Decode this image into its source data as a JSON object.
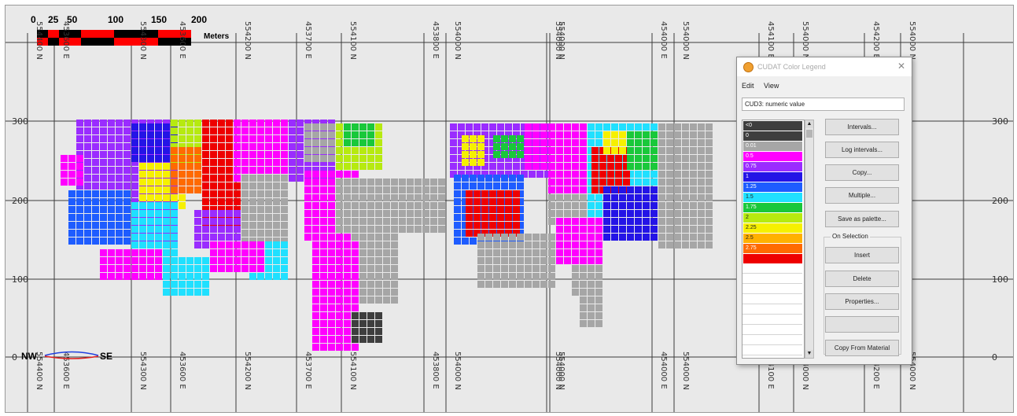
{
  "scale_bar": {
    "ticks": [
      "0",
      "25",
      "50",
      "100",
      "150",
      "200"
    ],
    "unit": "Meters"
  },
  "section_labels": {
    "left": "NW",
    "right": "SE"
  },
  "coord_labels_top": [
    "554400 N",
    "453600 E",
    "554300 N",
    "453600 E",
    "554200 N",
    "453700 E",
    "554100 N",
    "453800 E",
    "554000 N",
    "554000 N",
    "554000 N",
    "454000 E",
    "554000 N",
    "454100 E",
    "554000 N",
    "454200 E",
    "554000 N"
  ],
  "coord_labels_bottom": [
    "554400 N",
    "453600 E",
    "554300 N",
    "453600 E",
    "554200 N",
    "453700 E",
    "554100 N",
    "453800 E",
    "554000 N",
    "554000 N",
    "554000 N",
    "454000 E",
    "554000 N",
    "454100 E",
    "554000 N",
    "454200 E",
    "554000 N"
  ],
  "elevation_labels": [
    "300",
    "200",
    "100",
    "0"
  ],
  "dialog": {
    "title": "CUDAT Color Legend",
    "menu": {
      "edit": "Edit",
      "view": "View"
    },
    "variable": "CUD3: numeric value",
    "legend": [
      {
        "label": "<0",
        "color": "#3e3e3e"
      },
      {
        "label": "0",
        "color": "#3e3e3e"
      },
      {
        "label": "0.01",
        "color": "#a6a6a6"
      },
      {
        "label": "0.5",
        "color": "#ff00ff"
      },
      {
        "label": "0.75",
        "color": "#9a2cff"
      },
      {
        "label": "1",
        "color": "#2414e6"
      },
      {
        "label": "1.25",
        "color": "#1e5cff"
      },
      {
        "label": "1.5",
        "color": "#20e0ff"
      },
      {
        "label": "1.75",
        "color": "#19c83a"
      },
      {
        "label": "2",
        "color": "#b6ea10"
      },
      {
        "label": "2.25",
        "color": "#f6f000"
      },
      {
        "label": "2.5",
        "color": "#ffb000"
      },
      {
        "label": "2.75",
        "color": "#ff6a00"
      },
      {
        "label": "",
        "color": "#ee0000"
      }
    ],
    "buttons": {
      "intervals": "Intervals...",
      "log_intervals": "Log intervals...",
      "copy": "Copy...",
      "multiple": "Multiple...",
      "save_palette": "Save as palette...",
      "insert": "Insert",
      "delete": "Delete",
      "properties": "Properties...",
      "copy_from_material": "Copy From Material"
    },
    "on_selection": "On Selection"
  },
  "colors": {
    "background": "#e9e9e9",
    "waste": "#a6a6a6",
    "high_grade": "#ee0000"
  }
}
